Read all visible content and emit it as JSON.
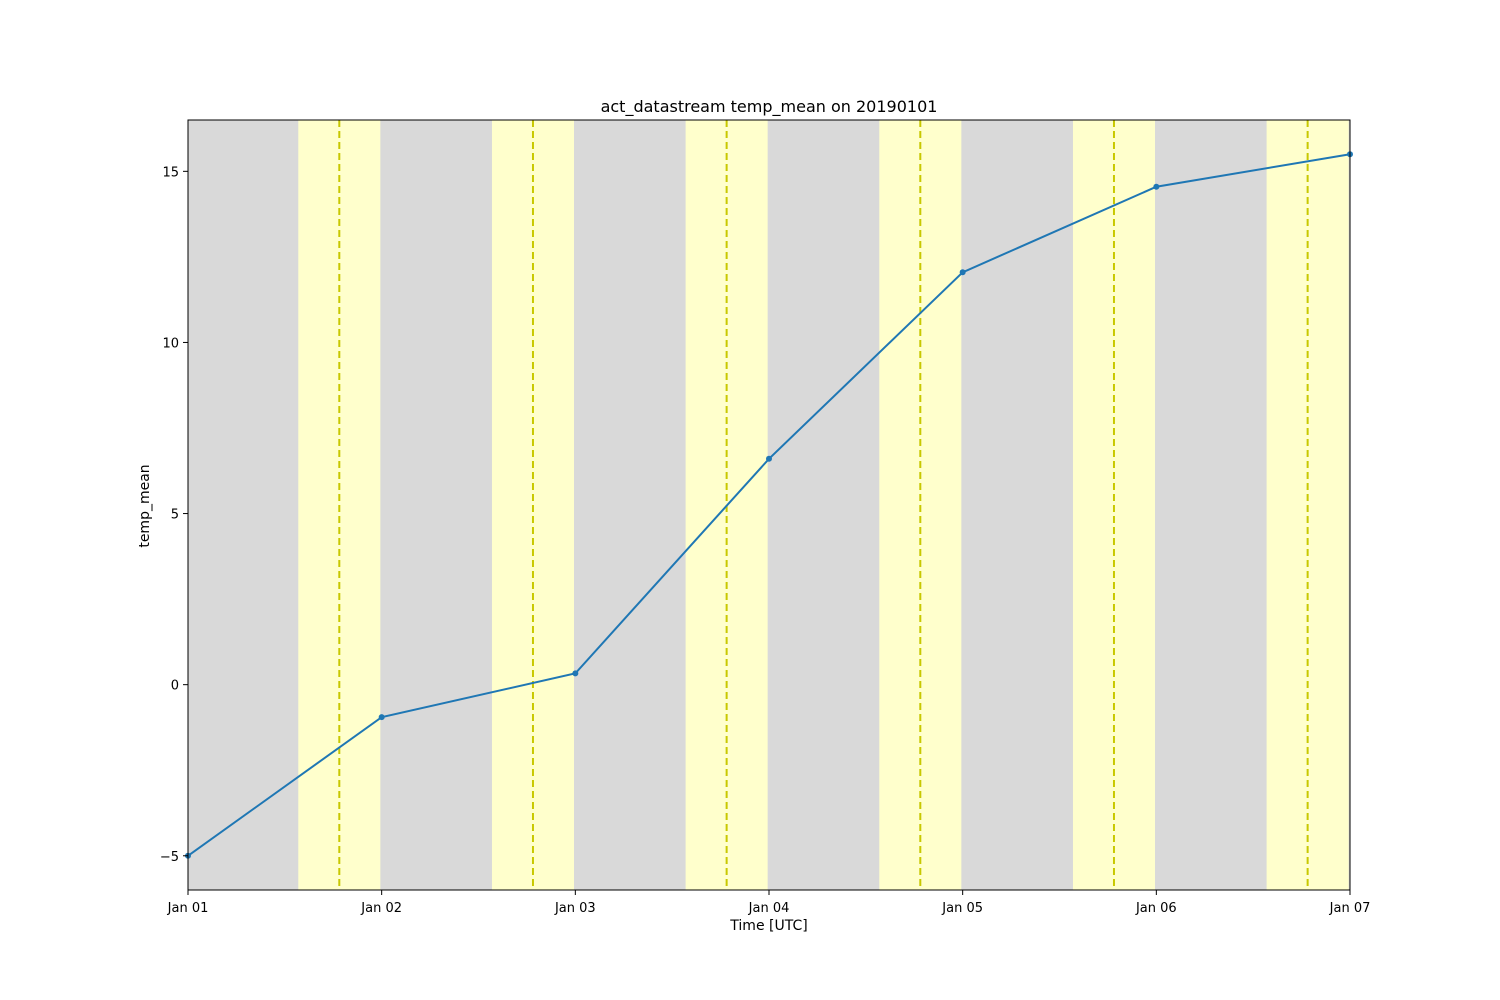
{
  "chart_data": {
    "type": "line",
    "title": "act_datastream temp_mean on 20190101",
    "xlabel": "Time [UTC]",
    "ylabel": "temp_mean",
    "x_ticks": [
      "Jan 01",
      "Jan 02",
      "Jan 03",
      "Jan 04",
      "Jan 05",
      "Jan 06",
      "Jan 07"
    ],
    "y_ticks": [
      -5,
      0,
      5,
      10,
      15
    ],
    "xlim": [
      "2019-01-01",
      "2019-01-07"
    ],
    "ylim": [
      -6.0,
      16.5
    ],
    "series": [
      {
        "color": "#1f77b4",
        "marker": "dot",
        "x": [
          "2019-01-01",
          "2019-01-02",
          "2019-01-03",
          "2019-01-04",
          "2019-01-05",
          "2019-01-06",
          "2019-01-07"
        ],
        "values": [
          -5.0,
          -0.95,
          0.33,
          6.6,
          12.05,
          14.55,
          15.5
        ]
      }
    ],
    "daylight_bands": {
      "color": "#ffffcc",
      "background_color": "#d9d9d9",
      "periods": [
        [
          "2019-01-01T13:40",
          "2019-01-01T23:50"
        ],
        [
          "2019-01-02T13:40",
          "2019-01-02T23:50"
        ],
        [
          "2019-01-03T13:40",
          "2019-01-03T23:50"
        ],
        [
          "2019-01-04T13:40",
          "2019-01-04T23:50"
        ],
        [
          "2019-01-05T13:40",
          "2019-01-05T23:50"
        ],
        [
          "2019-01-06T13:40",
          "2019-01-06T23:50"
        ]
      ]
    },
    "solar_noon_lines": {
      "color": "#c8c800",
      "style": "dashed",
      "times": [
        "2019-01-01T18:45",
        "2019-01-02T18:45",
        "2019-01-03T18:45",
        "2019-01-04T18:45",
        "2019-01-05T18:45",
        "2019-01-06T18:45"
      ]
    },
    "grid": false,
    "legend": "none"
  }
}
